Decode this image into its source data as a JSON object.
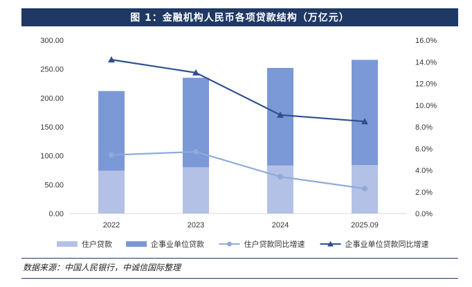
{
  "chart_data": {
    "type": "bar",
    "title": "图 1：金融机构人民币各项贷款结构（万亿元）",
    "categories": [
      "2022",
      "2023",
      "2024",
      "2025.09"
    ],
    "series": [
      {
        "name": "住户贷款",
        "kind": "bar",
        "axis": "left",
        "color": "#b4c1e6",
        "values": [
          74,
          80,
          83,
          84
        ]
      },
      {
        "name": "企事业单位贷款",
        "kind": "bar",
        "axis": "left",
        "color": "#7b98d7",
        "values": [
          138,
          155,
          169,
          182
        ]
      },
      {
        "name": "住户贷款同比增速",
        "kind": "line",
        "axis": "right",
        "marker": "circle",
        "color": "#8eaadb",
        "values": [
          0.054,
          0.057,
          0.034,
          0.023
        ]
      },
      {
        "name": "企事业单位贷款同比增速",
        "kind": "line",
        "axis": "right",
        "marker": "triangle",
        "color": "#2f4f8f",
        "values": [
          0.142,
          0.13,
          0.091,
          0.085
        ]
      }
    ],
    "left_axis": {
      "ylim": [
        0,
        300
      ],
      "ticks": [
        "300.00",
        "250.00",
        "200.00",
        "150.00",
        "100.00",
        "50.00",
        "0.00"
      ]
    },
    "right_axis": {
      "ylim": [
        0,
        0.16
      ],
      "ticks": [
        "16.0%",
        "14.0%",
        "12.0%",
        "10.0%",
        "8.0%",
        "6.0%",
        "4.0%",
        "2.0%",
        "0.0%"
      ]
    },
    "stacked": true,
    "grid": false,
    "legend_position": "bottom"
  },
  "source": "数据来源：中国人民银行，中诚信国际整理"
}
